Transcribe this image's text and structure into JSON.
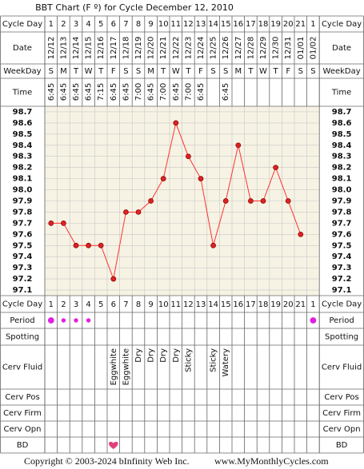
{
  "chart_data": {
    "type": "line",
    "title": "BBT Chart (F º) for Cycle December 12, 2010",
    "categories": [
      1,
      2,
      3,
      4,
      5,
      6,
      7,
      8,
      9,
      10,
      11,
      12,
      13,
      14,
      15,
      16,
      17,
      18,
      19,
      20,
      21,
      1
    ],
    "dates": [
      "12/12",
      "12/13",
      "12/14",
      "12/15",
      "12/16",
      "12/17",
      "12/18",
      "12/19",
      "12/20",
      "12/21",
      "12/22",
      "12/23",
      "12/24",
      "12/25",
      "12/26",
      "12/27",
      "12/28",
      "12/29",
      "12/30",
      "12/31",
      "01/01",
      "01/02"
    ],
    "weekdays": [
      "S",
      "M",
      "T",
      "W",
      "T",
      "F",
      "S",
      "S",
      "M",
      "T",
      "W",
      "T",
      "F",
      "S",
      "S",
      "M",
      "T",
      "W",
      "T",
      "F",
      "S",
      "S"
    ],
    "times": [
      "6:45",
      "6:45",
      "6:45",
      "6:45",
      "7:15",
      "6:45",
      "6:45",
      "7:00",
      "6:45",
      "7:00",
      "6:45",
      "7:00",
      "6:45",
      null,
      "6:45",
      null,
      null,
      null,
      null,
      null,
      null,
      null
    ],
    "values": [
      97.7,
      97.7,
      97.5,
      97.5,
      97.5,
      97.2,
      97.8,
      97.8,
      97.9,
      98.1,
      98.6,
      98.3,
      98.1,
      97.5,
      97.9,
      98.4,
      97.9,
      97.9,
      98.2,
      97.9,
      97.6,
      null
    ],
    "color": "#ff3333",
    "ylim": [
      97.05,
      98.75
    ],
    "yticks": [
      98.7,
      98.6,
      98.5,
      98.4,
      98.3,
      98.2,
      98.1,
      {
        "value": 98,
        "label": "98.0"
      },
      97.9,
      97.8,
      97.7,
      97.6,
      97.5,
      97.4,
      97.3,
      97.2,
      97.1
    ],
    "grid": true,
    "row_labels": [
      "Cycle Day",
      "Date",
      "WeekDay",
      "Time",
      "Cycle Day",
      "Period",
      "Spotting",
      "Cerv Fluid",
      "Cerv Pos",
      "Cerv Firm",
      "Cerv Opn",
      "BD"
    ],
    "period": [
      2,
      1,
      1,
      1,
      null,
      null,
      null,
      null,
      null,
      null,
      null,
      null,
      null,
      null,
      null,
      null,
      null,
      null,
      null,
      null,
      null,
      2
    ],
    "period_color": "#e020e0",
    "cerv_fluid": [
      null,
      null,
      null,
      null,
      null,
      "Eggwhite",
      "Eggwhite",
      "Dry",
      "Dry",
      "Dry",
      "Dry",
      "Sticky",
      null,
      "Sticky",
      "Watery",
      null,
      null,
      null,
      null,
      null,
      null,
      null
    ],
    "bd": [
      null,
      null,
      null,
      null,
      null,
      1,
      null,
      null,
      null,
      null,
      null,
      null,
      null,
      null,
      null,
      null,
      null,
      null,
      null,
      null,
      null,
      null
    ],
    "bd_color": "#e0407f",
    "copyright": "Copyright © 2003-2024 bInfinity Web Inc.",
    "site": "www.MyMonthlyCycles.com"
  }
}
